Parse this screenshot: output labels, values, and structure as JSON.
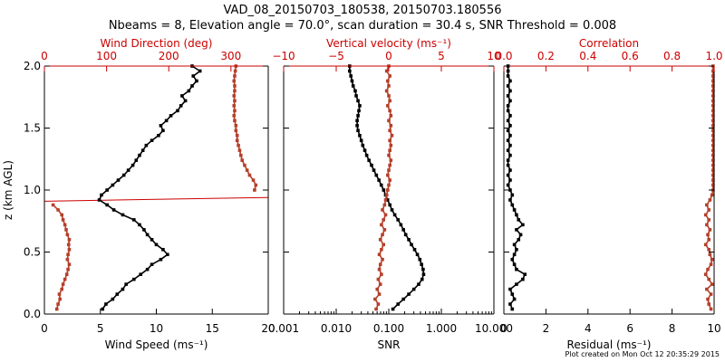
{
  "title_line1": "VAD_08_20150703_180538, 20150703.180556",
  "title_line2": "Nbeams = 8, Elevation angle = 70.0°, scan duration = 30.4 s, SNR Threshold = 0.008",
  "footer": "Plot created on Mon Oct 12 20:35:29 2015",
  "colors": {
    "red": "#cc0000",
    "marker_red": "#b5402a",
    "black": "#000000"
  },
  "chart_data": [
    {
      "type": "line",
      "panel": "left",
      "ylabel": "z (km AGL)",
      "ylim": [
        0.0,
        2.0
      ],
      "yticks": [
        "0.0",
        "0.5",
        "1.0",
        "1.5",
        "2.0"
      ],
      "xlabel_bottom": "Wind Speed (ms⁻¹)",
      "xlim_bottom": [
        0,
        20
      ],
      "xticks_bottom": [
        "0",
        "5",
        "10",
        "15",
        "20"
      ],
      "xlabel_top": "Wind Direction (deg)",
      "xlim_top": [
        0,
        360
      ],
      "xticks_top": [
        "0",
        "100",
        "200",
        "300"
      ],
      "series": [
        {
          "axis": "bottom",
          "color": "#000000",
          "z": [
            0.04,
            0.08,
            0.12,
            0.16,
            0.2,
            0.24,
            0.28,
            0.32,
            0.36,
            0.4,
            0.44,
            0.48,
            0.52,
            0.56,
            0.6,
            0.64,
            0.68,
            0.72,
            0.76,
            0.8,
            0.84,
            0.88,
            0.92,
            0.96,
            1.0,
            1.04,
            1.08,
            1.12,
            1.16,
            1.2,
            1.24,
            1.28,
            1.32,
            1.36,
            1.4,
            1.44,
            1.48,
            1.52,
            1.56,
            1.6,
            1.64,
            1.68,
            1.72,
            1.76,
            1.8,
            1.84,
            1.88,
            1.92,
            1.96,
            2.0
          ],
          "values": [
            5.2,
            5.5,
            6.1,
            6.5,
            7.0,
            7.3,
            8.0,
            8.6,
            9.2,
            9.6,
            10.4,
            11.0,
            10.6,
            10.0,
            9.6,
            9.2,
            8.9,
            8.5,
            8.0,
            7.0,
            6.2,
            5.6,
            4.9,
            5.1,
            5.6,
            6.1,
            6.6,
            7.1,
            7.5,
            7.9,
            8.2,
            8.5,
            8.8,
            9.1,
            9.6,
            10.2,
            10.6,
            10.4,
            10.9,
            11.3,
            11.9,
            12.2,
            12.6,
            12.3,
            12.9,
            13.2,
            13.6,
            13.3,
            13.9,
            13.2
          ]
        },
        {
          "axis": "top",
          "color": "#b5402a",
          "z": [
            0.04,
            0.08,
            0.12,
            0.16,
            0.2,
            0.24,
            0.28,
            0.32,
            0.36,
            0.4,
            0.44,
            0.48,
            0.52,
            0.56,
            0.6,
            0.64,
            0.68,
            0.72,
            0.76,
            0.8,
            0.84,
            0.88,
            1.0,
            1.04,
            1.08,
            1.12,
            1.16,
            1.2,
            1.24,
            1.28,
            1.32,
            1.36,
            1.4,
            1.44,
            1.48,
            1.52,
            1.56,
            1.6,
            1.64,
            1.68,
            1.72,
            1.76,
            1.8,
            1.84,
            1.88,
            1.92,
            1.96,
            2.0
          ],
          "values": [
            20,
            22,
            25,
            24,
            28,
            30,
            33,
            36,
            38,
            40,
            37,
            38,
            40,
            39,
            40,
            37,
            35,
            33,
            30,
            28,
            22,
            14,
            338,
            340,
            336,
            330,
            326,
            322,
            318,
            316,
            314,
            312,
            310,
            310,
            308,
            308,
            306,
            305,
            306,
            305,
            306,
            305,
            306,
            306,
            305,
            306,
            307,
            308
          ]
        }
      ],
      "annotations": [
        {
          "type": "line",
          "x0": 0,
          "z0": 0.91,
          "x1": 360,
          "z1": 0.94,
          "axis": "top",
          "color": "#cc0000"
        }
      ]
    },
    {
      "type": "line",
      "panel": "middle",
      "xlabel_bottom": "SNR",
      "xscale_bottom": "log",
      "xlim_bottom": [
        0.001,
        10
      ],
      "xticks_bottom": [
        "0.001",
        "0.010",
        "0.100",
        "1.000",
        "10.000"
      ],
      "xlabel_top": "Vertical velocity (ms⁻¹)",
      "xlim_top": [
        -10,
        10
      ],
      "xticks_top": [
        "−10",
        "−5",
        "0",
        "5",
        "10"
      ],
      "ylim": [
        0.0,
        2.0
      ],
      "series": [
        {
          "axis": "bottom",
          "color": "#000000",
          "z": [
            0.04,
            0.08,
            0.12,
            0.16,
            0.2,
            0.24,
            0.28,
            0.32,
            0.36,
            0.4,
            0.44,
            0.48,
            0.52,
            0.56,
            0.6,
            0.64,
            0.68,
            0.72,
            0.76,
            0.8,
            0.84,
            0.88,
            0.92,
            0.96,
            1.0,
            1.04,
            1.08,
            1.12,
            1.16,
            1.2,
            1.24,
            1.28,
            1.32,
            1.36,
            1.4,
            1.44,
            1.48,
            1.52,
            1.56,
            1.6,
            1.64,
            1.68,
            1.72,
            1.76,
            1.8,
            1.84,
            1.88,
            1.92,
            1.96,
            2.0
          ],
          "values": [
            0.12,
            0.15,
            0.19,
            0.24,
            0.3,
            0.37,
            0.43,
            0.46,
            0.45,
            0.42,
            0.39,
            0.35,
            0.31,
            0.27,
            0.24,
            0.21,
            0.19,
            0.17,
            0.15,
            0.13,
            0.115,
            0.105,
            0.095,
            0.087,
            0.08,
            0.072,
            0.065,
            0.058,
            0.052,
            0.047,
            0.042,
            0.038,
            0.035,
            0.032,
            0.03,
            0.028,
            0.026,
            0.025,
            0.025,
            0.026,
            0.027,
            0.028,
            0.026,
            0.024,
            0.023,
            0.021,
            0.02,
            0.019,
            0.018,
            0.018
          ]
        },
        {
          "axis": "top",
          "color": "#b5402a",
          "z": [
            0.04,
            0.08,
            0.12,
            0.16,
            0.2,
            0.24,
            0.28,
            0.32,
            0.36,
            0.4,
            0.44,
            0.48,
            0.52,
            0.56,
            0.6,
            0.64,
            0.68,
            0.72,
            0.76,
            0.8,
            0.84,
            0.88,
            0.92,
            0.96,
            1.0,
            1.04,
            1.08,
            1.12,
            1.16,
            1.2,
            1.24,
            1.28,
            1.32,
            1.36,
            1.4,
            1.44,
            1.48,
            1.52,
            1.56,
            1.6,
            1.64,
            1.68,
            1.72,
            1.76,
            1.8,
            1.84,
            1.88,
            1.92,
            1.96,
            2.0
          ],
          "values": [
            -1.2,
            -1.0,
            -1.3,
            -0.9,
            -1.1,
            -0.8,
            -1.0,
            -0.7,
            -0.9,
            -0.8,
            -0.6,
            -0.9,
            -0.7,
            -0.5,
            -0.8,
            -0.6,
            -0.4,
            -0.7,
            -0.5,
            -0.3,
            -0.6,
            -0.4,
            -0.3,
            -0.2,
            -0.1,
            0.0,
            0.1,
            -0.1,
            0.0,
            0.1,
            0.2,
            0.0,
            0.1,
            0.2,
            0.1,
            0.3,
            0.1,
            0.2,
            0.0,
            0.2,
            0.1,
            -0.1,
            0.1,
            0.0,
            -0.2,
            0.0,
            -0.1,
            0.1,
            -0.2,
            0.0
          ]
        }
      ]
    },
    {
      "type": "line",
      "panel": "right",
      "xlabel_bottom": "Residual (ms⁻¹)",
      "xlim_bottom": [
        0,
        10
      ],
      "xticks_bottom": [
        "0",
        "2",
        "4",
        "6",
        "8",
        "10"
      ],
      "xlabel_top": "Correlation",
      "xlim_top": [
        0.0,
        1.0
      ],
      "xticks_top": [
        "0.0",
        "0.2",
        "0.4",
        "0.6",
        "0.8",
        "1.0"
      ],
      "ylim": [
        0.0,
        2.0
      ],
      "series": [
        {
          "axis": "bottom",
          "color": "#000000",
          "z": [
            0.04,
            0.08,
            0.12,
            0.16,
            0.2,
            0.24,
            0.28,
            0.32,
            0.36,
            0.4,
            0.44,
            0.48,
            0.52,
            0.56,
            0.6,
            0.64,
            0.68,
            0.72,
            0.76,
            0.8,
            0.84,
            0.88,
            0.92,
            0.96,
            1.0,
            1.04,
            1.08,
            1.12,
            1.16,
            1.2,
            1.24,
            1.28,
            1.32,
            1.36,
            1.4,
            1.44,
            1.48,
            1.52,
            1.56,
            1.6,
            1.64,
            1.68,
            1.72,
            1.76,
            1.8,
            1.84,
            1.88,
            1.92,
            1.96,
            2.0
          ],
          "values": [
            0.4,
            0.3,
            0.5,
            0.4,
            0.3,
            0.6,
            0.9,
            1.0,
            0.6,
            0.5,
            0.4,
            0.5,
            0.6,
            0.5,
            0.7,
            0.8,
            0.6,
            0.9,
            0.7,
            0.6,
            0.5,
            0.4,
            0.3,
            0.4,
            0.3,
            0.2,
            0.3,
            0.2,
            0.3,
            0.2,
            0.2,
            0.3,
            0.2,
            0.3,
            0.2,
            0.3,
            0.2,
            0.3,
            0.2,
            0.3,
            0.2,
            0.2,
            0.3,
            0.2,
            0.3,
            0.2,
            0.3,
            0.2,
            0.2,
            0.2
          ]
        },
        {
          "axis": "top",
          "color": "#b5402a",
          "z": [
            0.04,
            0.08,
            0.12,
            0.16,
            0.2,
            0.24,
            0.28,
            0.32,
            0.36,
            0.4,
            0.44,
            0.48,
            0.52,
            0.56,
            0.6,
            0.64,
            0.68,
            0.72,
            0.76,
            0.8,
            0.84,
            0.88,
            0.92,
            0.96,
            1.0,
            1.04,
            1.08,
            1.12,
            1.16,
            1.2,
            1.24,
            1.28,
            1.32,
            1.36,
            1.4,
            1.44,
            1.48,
            1.52,
            1.56,
            1.6,
            1.64,
            1.68,
            1.72,
            1.76,
            1.8,
            1.84,
            1.88,
            1.92,
            1.96,
            2.0
          ],
          "values": [
            0.985,
            0.975,
            0.97,
            0.985,
            0.965,
            0.99,
            0.975,
            0.96,
            0.97,
            0.985,
            0.99,
            0.98,
            0.975,
            0.96,
            0.975,
            0.97,
            0.98,
            0.965,
            0.975,
            0.96,
            0.975,
            0.965,
            0.98,
            0.99,
            0.995,
            0.995,
            0.995,
            0.995,
            0.995,
            0.995,
            0.995,
            0.995,
            0.995,
            0.995,
            0.995,
            0.995,
            0.995,
            0.995,
            0.995,
            0.995,
            0.995,
            0.995,
            0.995,
            0.995,
            0.995,
            0.995,
            0.995,
            0.995,
            0.995,
            0.995
          ]
        }
      ]
    }
  ]
}
